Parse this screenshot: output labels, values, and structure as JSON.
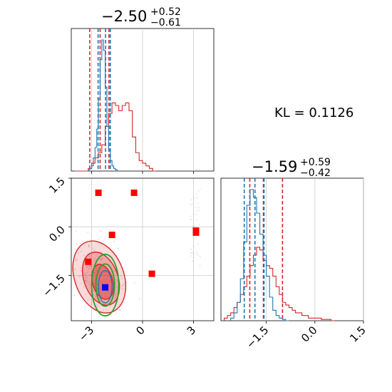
{
  "kl": {
    "label": "KL = 0.1126"
  },
  "colors": {
    "red": "#d62728",
    "blue": "#1f77b4",
    "green": "#2ca02c",
    "marker_red": "#ff0000",
    "marker_blue": "#0000ff",
    "grid": "#cccccc"
  },
  "chart_data": [
    {
      "panel": "top-left",
      "type": "histogram-step",
      "title": {
        "main": "−2.50",
        "sup": "+0.52",
        "sub": "−0.61"
      },
      "xlim": [
        -4.2,
        4.2
      ],
      "grid": true,
      "bin_width": 0.2,
      "series": [
        {
          "name": "",
          "color": "#d62728",
          "bins_start": -4.0,
          "heights": [
            0,
            0,
            0,
            0,
            0.02,
            0.06,
            0.1,
            0.14,
            0.2,
            0.34,
            0.44,
            0.52,
            0.5,
            0.46,
            0.5,
            0.52,
            0.46,
            0.26,
            0.14,
            0.08,
            0.06,
            0.04,
            0.02,
            0.0
          ],
          "quantile_lines": [
            -3.11,
            -2.5,
            -1.98
          ]
        },
        {
          "name": "",
          "color": "#1f77b4",
          "bins_start": -3.2,
          "heights": [
            0.01,
            0.02,
            0.04,
            0.1,
            0.18,
            0.32,
            0.55,
            0.85,
            1.0,
            0.92,
            0.64,
            0.34,
            0.16,
            0.08,
            0.04,
            0.02,
            0.01
          ],
          "bin_width": 0.1,
          "quantile_lines": [
            -2.62,
            -2.18,
            -1.9
          ]
        }
      ]
    },
    {
      "panel": "bottom-left",
      "type": "scatter-contour",
      "xlim": [
        -4.2,
        4.2
      ],
      "ylim": [
        -2.9,
        1.5
      ],
      "xticks": [
        "−3",
        "0",
        "3"
      ],
      "xtick_values": [
        -3,
        0,
        3
      ],
      "yticks": [
        "1.5",
        "0.0",
        "−1.5"
      ],
      "ytick_values": [
        1.5,
        0.0,
        -1.5
      ],
      "grid": true,
      "red_markers": [
        {
          "x": -2.6,
          "y": 1.05
        },
        {
          "x": -0.5,
          "y": 1.05
        },
        {
          "x": -1.8,
          "y": -0.25
        },
        {
          "x": 3.15,
          "y": -0.12
        },
        {
          "x": 3.15,
          "y": -0.18
        },
        {
          "x": 0.55,
          "y": -1.45
        },
        {
          "x": -3.2,
          "y": -1.08
        }
      ],
      "blue_markers": [
        {
          "x": -2.2,
          "y": -1.87
        }
      ],
      "red_contours": [
        {
          "cx": -2.55,
          "cy": -1.55,
          "rx": 1.45,
          "ry": 1.15,
          "rot": -20,
          "opacity": 0.28
        },
        {
          "cx": -2.45,
          "cy": -1.6,
          "rx": 1.0,
          "ry": 0.85,
          "rot": -20,
          "opacity": 0.45
        },
        {
          "cx": -2.35,
          "cy": -1.7,
          "rx": 0.6,
          "ry": 0.55,
          "rot": -15,
          "opacity": 0.7
        }
      ],
      "green_contours": [
        {
          "cx": -2.2,
          "cy": -1.8,
          "rx": 0.8,
          "ry": 0.95
        },
        {
          "cx": -2.2,
          "cy": -1.8,
          "rx": 0.55,
          "ry": 0.65
        }
      ],
      "blue_contours": [
        {
          "cx": -2.2,
          "cy": -1.85,
          "rx": 0.4,
          "ry": 0.5
        }
      ]
    },
    {
      "panel": "bottom-right",
      "type": "histogram-step",
      "title": {
        "main": "−1.59",
        "sup": "+0.59",
        "sub": "−0.42"
      },
      "xlim": [
        -2.9,
        1.5
      ],
      "xticks": [
        "−1.5",
        "0.0",
        "1.5"
      ],
      "xtick_values": [
        -1.5,
        0.0,
        1.5
      ],
      "grid": true,
      "series": [
        {
          "name": "",
          "color": "#d62728",
          "bins_start": -2.8,
          "bin_width": 0.1,
          "heights": [
            0.02,
            0.04,
            0.06,
            0.1,
            0.14,
            0.2,
            0.26,
            0.34,
            0.42,
            0.5,
            0.56,
            0.54,
            0.46,
            0.42,
            0.4,
            0.34,
            0.26,
            0.2,
            0.14,
            0.12,
            0.1,
            0.08,
            0.06,
            0.06,
            0.04,
            0.04,
            0.02,
            0.02,
            0.02,
            0.02,
            0.01,
            0.01,
            0.01,
            0.0
          ],
          "quantile_lines": [
            -2.01,
            -1.59,
            -1.0
          ]
        },
        {
          "name": "",
          "color": "#1f77b4",
          "bins_start": -2.6,
          "bin_width": 0.1,
          "heights": [
            0.02,
            0.06,
            0.14,
            0.32,
            0.6,
            0.88,
            1.0,
            0.94,
            0.82,
            0.66,
            0.5,
            0.34,
            0.18,
            0.08,
            0.04,
            0.02,
            0.01,
            0.0
          ],
          "quantile_lines": [
            -2.18,
            -1.85,
            -1.57
          ]
        }
      ]
    }
  ]
}
